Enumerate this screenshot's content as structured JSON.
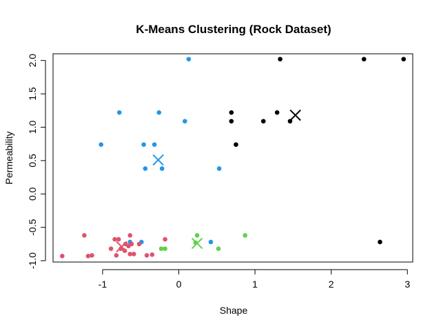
{
  "chart_data": {
    "type": "scatter",
    "title": "K-Means Clustering (Rock Dataset)",
    "xlabel": "Shape",
    "ylabel": "Permeability",
    "xlim": [
      -1.65,
      3.07
    ],
    "ylim": [
      -1.02,
      2.1
    ],
    "x_ticks": [
      -1,
      0,
      1,
      2,
      3
    ],
    "y_ticks": [
      -1.0,
      -0.5,
      0.0,
      0.5,
      1.0,
      1.5,
      2.0
    ],
    "x_tick_labels": [
      "-1",
      "0",
      "1",
      "2",
      "3"
    ],
    "y_tick_labels": [
      "-1.0",
      "-0.5",
      "0.0",
      "0.5",
      "1.0",
      "1.5",
      "2.0"
    ],
    "grid": false,
    "legend": "none",
    "series": [
      {
        "color": "#000000",
        "points": [
          [
            1.33,
            2.02
          ],
          [
            2.43,
            2.02
          ],
          [
            2.95,
            2.02
          ],
          [
            0.69,
            1.22
          ],
          [
            1.29,
            1.22
          ],
          [
            0.69,
            1.09
          ],
          [
            1.11,
            1.09
          ],
          [
            1.46,
            1.09
          ],
          [
            0.75,
            0.74
          ],
          [
            2.64,
            -0.72
          ]
        ],
        "centroid": [
          1.53,
          1.18
        ]
      },
      {
        "color": "#2297E6",
        "points": [
          [
            0.13,
            2.02
          ],
          [
            -0.78,
            1.22
          ],
          [
            -0.26,
            1.22
          ],
          [
            0.08,
            1.09
          ],
          [
            -1.02,
            0.74
          ],
          [
            -0.46,
            0.74
          ],
          [
            -0.32,
            0.74
          ],
          [
            -0.44,
            0.38
          ],
          [
            -0.22,
            0.38
          ],
          [
            0.53,
            0.38
          ],
          [
            -0.49,
            -0.72
          ],
          [
            -0.64,
            -0.72
          ],
          [
            0.42,
            -0.72
          ]
        ],
        "centroid": [
          -0.27,
          0.51
        ]
      },
      {
        "color": "#DF536B",
        "points": [
          [
            -1.24,
            -0.62
          ],
          [
            -0.64,
            -0.62
          ],
          [
            -0.84,
            -0.68
          ],
          [
            -0.79,
            -0.68
          ],
          [
            -0.18,
            -0.68
          ],
          [
            -0.7,
            -0.75
          ],
          [
            -0.52,
            -0.75
          ],
          [
            -0.62,
            -0.75
          ],
          [
            -0.89,
            -0.82
          ],
          [
            -0.76,
            -0.82
          ],
          [
            -0.64,
            -0.9
          ],
          [
            -0.59,
            -0.9
          ],
          [
            -0.82,
            -0.92
          ],
          [
            -1.14,
            -0.92
          ],
          [
            -0.42,
            -0.92
          ],
          [
            -1.53,
            -0.93
          ],
          [
            -1.19,
            -0.93
          ],
          [
            -0.35,
            -0.91
          ],
          [
            -0.71,
            -0.85
          ],
          [
            -0.66,
            -0.78
          ]
        ],
        "centroid": [
          -0.75,
          -0.79
        ]
      },
      {
        "color": "#61D04F",
        "points": [
          [
            0.24,
            -0.62
          ],
          [
            0.87,
            -0.62
          ],
          [
            0.22,
            -0.73
          ],
          [
            -0.23,
            -0.82
          ],
          [
            -0.18,
            -0.82
          ],
          [
            0.52,
            -0.82
          ]
        ],
        "centroid": [
          0.24,
          -0.74
        ]
      }
    ]
  }
}
